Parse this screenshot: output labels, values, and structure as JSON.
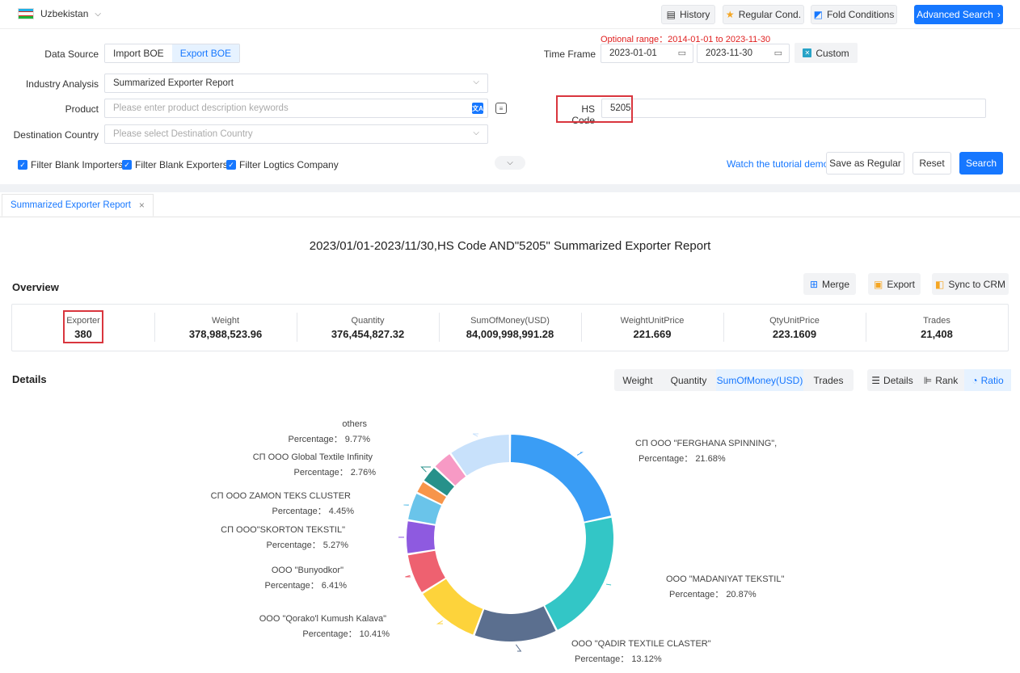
{
  "header": {
    "country": "Uzbekistan",
    "history_label": "History",
    "regular_label": "Regular Cond.",
    "fold_label": "Fold Conditions",
    "advanced_label": "Advanced Search",
    "advanced_arrow": "›"
  },
  "filters": {
    "data_source_label": "Data Source",
    "import_label": "Import BOE",
    "export_label": "Export BOE",
    "time_frame_label": "Time Frame",
    "optional_range": "Optional range：2014-01-01 to 2023-11-30",
    "date_from": "2023-01-01",
    "date_to": "2023-11-30",
    "custom_label": "Custom",
    "industry_label": "Industry Analysis",
    "industry_value": "Summarized Exporter Report",
    "product_label": "Product",
    "product_placeholder": "Please enter product description keywords",
    "hs_label": "HS Code",
    "hs_value": "5205",
    "destination_label": "Destination Country",
    "destination_placeholder": "Please select Destination Country",
    "filter_importers": "Filter Blank Importers",
    "filter_exporters": "Filter Blank Exporters",
    "filter_logistics": "Filter Logtics Company",
    "tutorial_link": "Watch the tutorial demo",
    "save_regular": "Save as Regular",
    "reset": "Reset",
    "search": "Search"
  },
  "tab": {
    "label": "Summarized Exporter Report",
    "close": "×"
  },
  "report_title": "2023/01/01-2023/11/30,HS Code AND\"5205\" Summarized Exporter Report",
  "overview": {
    "title": "Overview",
    "merge": "Merge",
    "export": "Export",
    "sync": "Sync to CRM",
    "stats": [
      {
        "key": "Exporter",
        "value": "380"
      },
      {
        "key": "Weight",
        "value": "378,988,523.96"
      },
      {
        "key": "Quantity",
        "value": "376,454,827.32"
      },
      {
        "key": "SumOfMoney(USD)",
        "value": "84,009,998,991.28"
      },
      {
        "key": "WeightUnitPrice",
        "value": "221.669"
      },
      {
        "key": "QtyUnitPrice",
        "value": "223.1609"
      },
      {
        "key": "Trades",
        "value": "21,408"
      }
    ]
  },
  "details": {
    "title": "Details",
    "metrics": [
      "Weight",
      "Quantity",
      "SumOfMoney(USD)",
      "Trades"
    ],
    "views": [
      "Details",
      "Rank",
      "Ratio"
    ]
  },
  "chart_data": {
    "type": "pie",
    "variant": "donut",
    "slice_label_prefix": "Percentage：",
    "slices": [
      {
        "name": "СП ООО \"FERGHANA SPINNING\",",
        "value": 21.68,
        "label": "21.68%",
        "color": "#3a9df5"
      },
      {
        "name": "ООО \"MADANIYAT TEKSTIL\"",
        "value": 20.87,
        "label": "20.87%",
        "color": "#33c6c6"
      },
      {
        "name": "ООО \"QADIR TEXTILE CLASTER\"",
        "value": 13.12,
        "label": "13.12%",
        "color": "#5b6f8f"
      },
      {
        "name": "ООО \"Qorako'l Kumush Kalava\"",
        "value": 10.41,
        "label": "10.41%",
        "color": "#fdd33b"
      },
      {
        "name": "ООО \"Bunyodkor\"",
        "value": 6.41,
        "label": "6.41%",
        "color": "#ee6170"
      },
      {
        "name": "СП ООО\"SKORTON TEKSTIL\"",
        "value": 5.27,
        "label": "5.27%",
        "color": "#8e5ae0"
      },
      {
        "name": "СП ООО ZAMON TEKS CLUSTER",
        "value": 4.45,
        "label": "4.45%",
        "color": "#6ac4ea"
      },
      {
        "name": "",
        "value": 2.05,
        "label": "",
        "color": "#f7954a"
      },
      {
        "name": "СП ООО Global Textile Infinity",
        "value": 2.76,
        "label": "2.76%",
        "color": "#27918a"
      },
      {
        "name": "",
        "value": 3.21,
        "label": "",
        "color": "#f79ac5"
      },
      {
        "name": "others",
        "value": 9.77,
        "label": "9.77%",
        "color": "#c8e1fb"
      }
    ]
  }
}
